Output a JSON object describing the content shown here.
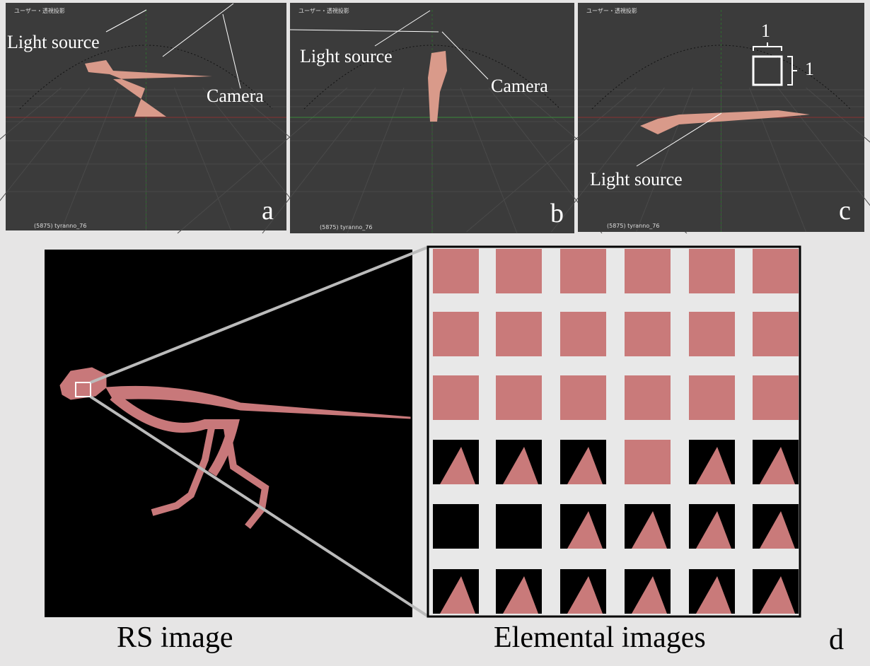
{
  "panels": [
    {
      "header": "ユーザー・透視投影",
      "footer": "(5875) tyranno_76",
      "labels": [
        "Light source",
        "Camera"
      ],
      "letter": "a"
    },
    {
      "header": "ユーザー・透視投影",
      "footer": "(5875) tyranno_76",
      "labels": [
        "Light source",
        "Camera"
      ],
      "letter": "b"
    },
    {
      "header": "ユーザー・透視投影",
      "footer": "(5875) tyranno_76",
      "labels": [
        "Light source"
      ],
      "scale": [
        "1",
        "1"
      ],
      "letter": "c"
    }
  ],
  "bottom": {
    "left_caption": "RS image",
    "right_caption": "Elemental images",
    "letter": "d"
  }
}
